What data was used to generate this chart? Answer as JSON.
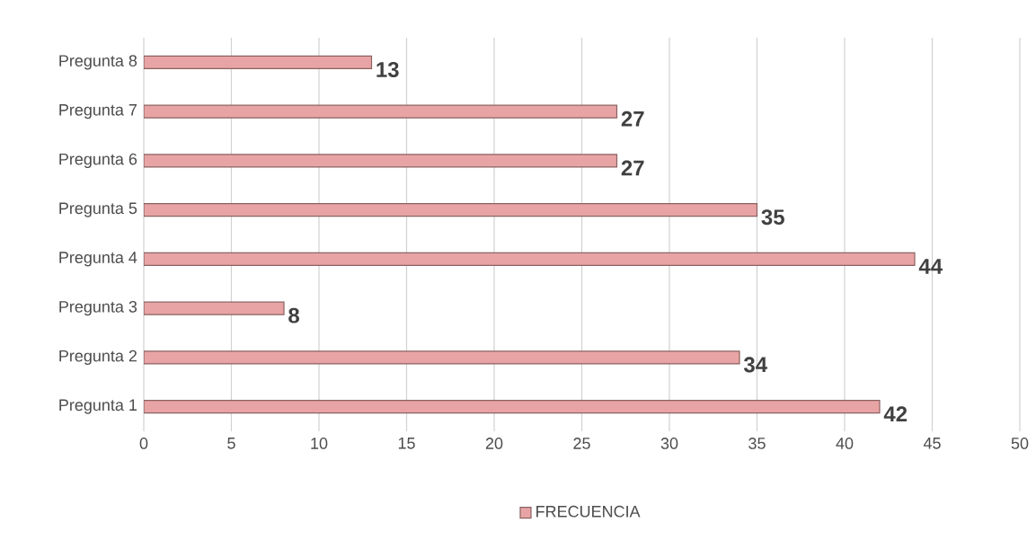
{
  "chart_data": {
    "type": "bar",
    "orientation": "horizontal",
    "categories": [
      "Pregunta 8",
      "Pregunta 7",
      "Pregunta 6",
      "Pregunta 5",
      "Pregunta 4",
      "Pregunta 3",
      "Pregunta 2",
      "Pregunta 1"
    ],
    "series": [
      {
        "name": "FRECUENCIA",
        "color": "#e8a4a4",
        "values": [
          13,
          27,
          27,
          35,
          44,
          8,
          34,
          42
        ]
      }
    ],
    "xlim": [
      0,
      50
    ],
    "xticks": [
      0,
      5,
      10,
      15,
      20,
      25,
      30,
      35,
      40,
      45,
      50
    ],
    "grid": "x",
    "legend": "bottom",
    "data_labels": true
  }
}
